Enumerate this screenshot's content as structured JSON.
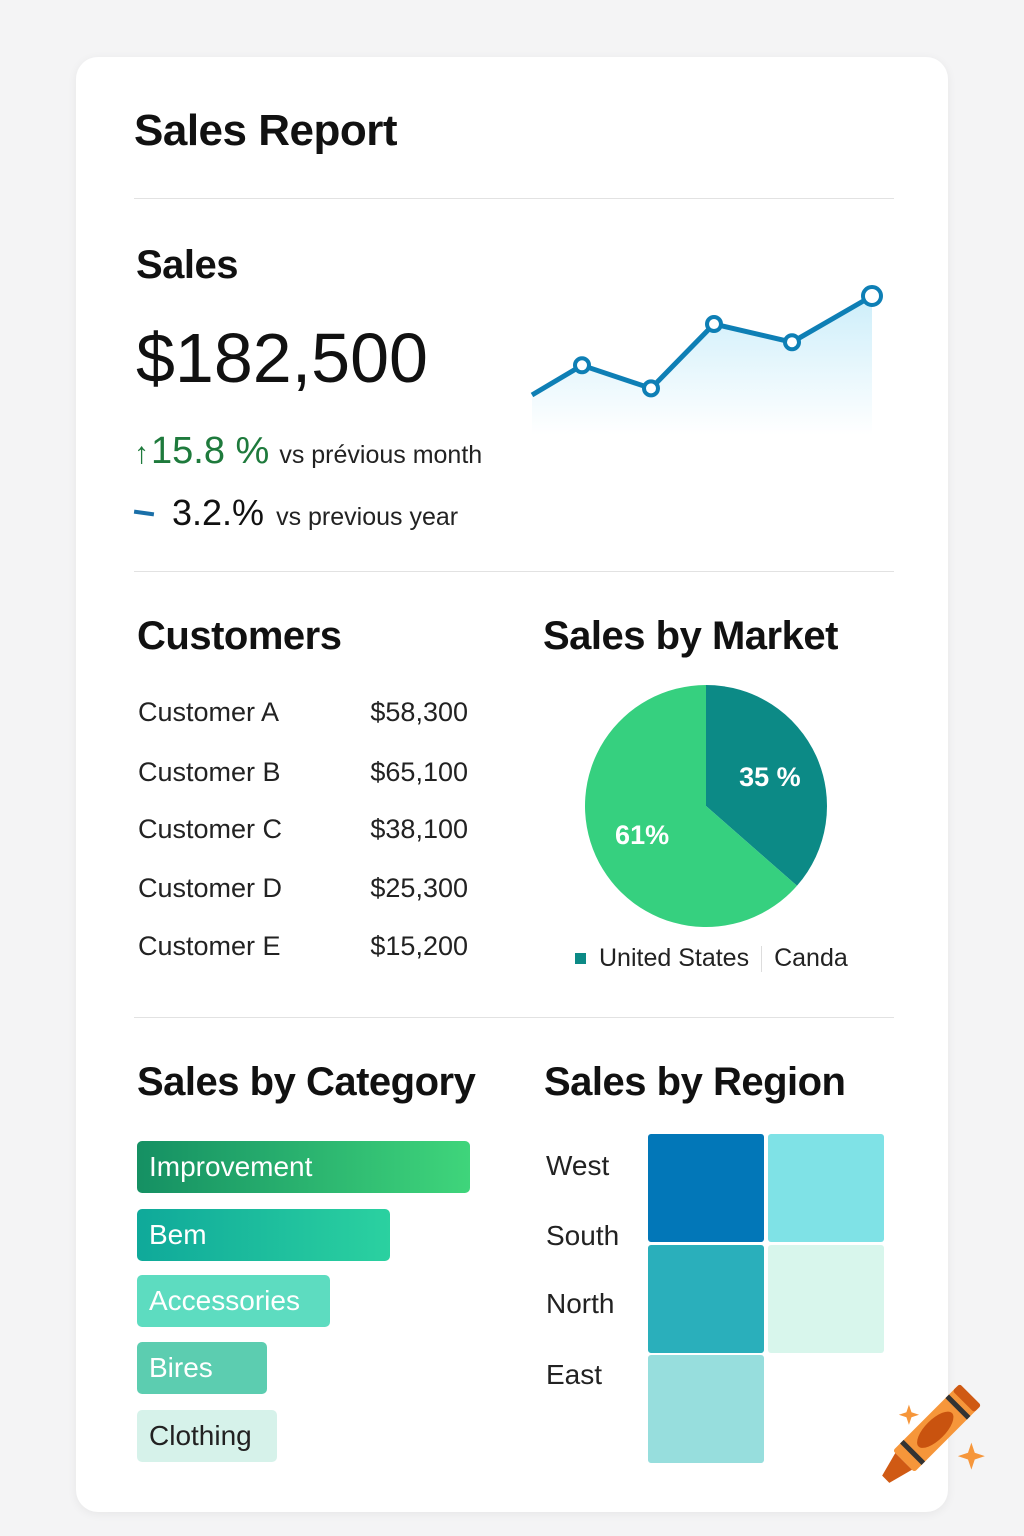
{
  "title": "Sales Report",
  "sales": {
    "heading": "Sales",
    "total": "$182,500",
    "month_change": {
      "value": "15.8 %",
      "label": "vs prévious month",
      "icon": "arrow-up-icon",
      "color": "#1e7a3c"
    },
    "year_change": {
      "value": "3.2.%",
      "label": "vs previous year",
      "icon": "dash-icon",
      "color": "#1a6fa8"
    }
  },
  "customers": {
    "heading": "Customers",
    "rows": [
      {
        "name": "Customer A",
        "amount": "$58,300"
      },
      {
        "name": "Customer B",
        "amount": "$65,100"
      },
      {
        "name": "Customer C",
        "amount": "$38,100"
      },
      {
        "name": "Customer D",
        "amount": "$25,300"
      },
      {
        "name": "Customer E",
        "amount": "$15,200"
      }
    ]
  },
  "chart_data": [
    {
      "type": "line",
      "series": [
        {
          "values": [
            20,
            38,
            24,
            63,
            52,
            80
          ]
        }
      ],
      "color": "#0e7fb5",
      "area_fill": true,
      "axes": false,
      "grid": false
    },
    {
      "type": "pie",
      "title": "Sales by Market",
      "slices": [
        {
          "name": "Canda",
          "label": "35 %",
          "value": 35,
          "color": "#0c8a86"
        },
        {
          "name": "United States",
          "label": "61%",
          "value": 61,
          "color": "#36d07f"
        }
      ],
      "legend": "bottom"
    },
    {
      "type": "bar",
      "title": "Sales by Category",
      "orientation": "horizontal",
      "categories": [
        "Improvement",
        "Bem",
        "Accessories",
        "Bires",
        "Clothing"
      ],
      "values": [
        1.0,
        0.76,
        0.58,
        0.39,
        0.42
      ],
      "colors": [
        "#1f9e6e",
        "#0fb39b",
        "#5ddcc0",
        "#5ccdb0",
        "#d6f2ea"
      ]
    },
    {
      "type": "heatmap",
      "title": "Sales by Region",
      "rows": [
        "West",
        "South",
        "North",
        "East"
      ],
      "cells": [
        [
          "#0277b8",
          "#7fe2e6"
        ],
        [
          "#2aafbb",
          "#d8f6ec"
        ],
        [
          "#97dedd",
          null
        ]
      ]
    }
  ]
}
